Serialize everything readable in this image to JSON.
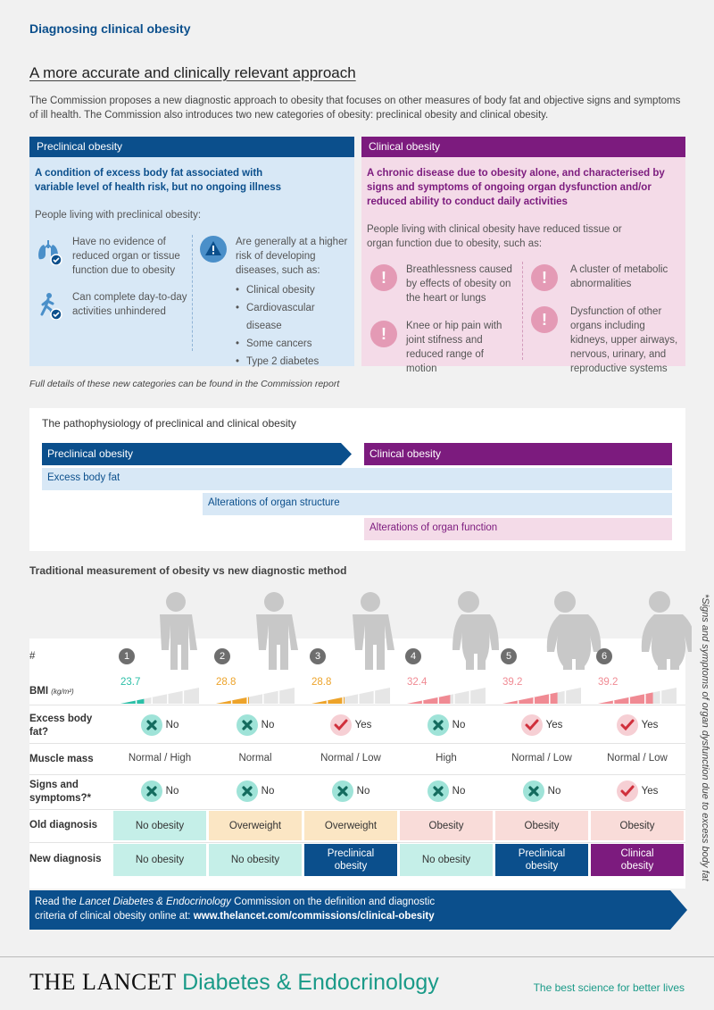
{
  "header": {
    "kicker": "Diagnosing clinical obesity",
    "headline": "A more accurate and clinically relevant approach",
    "intro": "The Commission proposes a new diagnostic approach to obesity that focuses on other measures of body fat and objective signs and symptoms of ill health. The Commission also introduces two new categories of obesity: preclinical obesity and clinical obesity."
  },
  "preclinical": {
    "title": "Preclinical obesity",
    "definition": "A condition of excess body fat associated with variable level of health risk, but no ongoing illness",
    "lead": "People living with preclinical obesity:",
    "left_items": [
      {
        "icon": "lungs-check-icon",
        "text": "Have no evidence of reduced organ or tissue function due to obesity"
      },
      {
        "icon": "walking-check-icon",
        "text": "Can complete day-to-day activities unhindered"
      }
    ],
    "risk_text": "Are generally at a higher risk of developing diseases, such as:",
    "risk_bullets": [
      "Clinical obesity",
      "Cardiovascular disease",
      "Some cancers",
      "Type 2 diabetes"
    ]
  },
  "clinical": {
    "title": "Clinical obesity",
    "definition": "A chronic disease due to obesity alone, and characterised by signs and symptoms of ongoing organ dysfunction and/or reduced ability to conduct daily activities",
    "lead": "People living with clinical obesity have reduced tissue or organ function due to obesity, such as:",
    "items": [
      "Breathlessness caused by effects of obesity on the heart or lungs",
      "Knee or hip pain with joint stifness and reduced range of motion",
      "A cluster of metabolic abnormalities",
      "Dysfunction of other organs including kidneys, upper airways, nervous, urinary, and reproductive systems"
    ],
    "warn_glyph": "!"
  },
  "footnote": "Full details of these new categories can be found in the Commission report",
  "patho": {
    "title": "The pathophysiology of preclinical and clinical obesity",
    "preclinical_label": "Preclinical obesity",
    "clinical_label": "Clinical obesity",
    "bars": [
      "Excess body fat",
      "Alterations of organ structure",
      "Alterations of organ function"
    ]
  },
  "measure": {
    "title": "Traditional measurement of obesity vs new diagnostic method",
    "row_labels": {
      "num": "#",
      "bmi": "BMI",
      "bmi_unit": "(kg/m²)",
      "fat": "Excess body fat?",
      "muscle": "Muscle mass",
      "signs": "Signs and symptoms?*",
      "old": "Old diagnosis",
      "new": "New diagnosis"
    },
    "columns": [
      {
        "num": "1",
        "bmi": "23.7",
        "bmi_fill": 0.3,
        "bmi_color": "#2bbfa7",
        "fat": "No",
        "muscle": "Normal / High",
        "signs": "No",
        "old": "No obesity",
        "new": "No obesity"
      },
      {
        "num": "2",
        "bmi": "28.8",
        "bmi_fill": 0.42,
        "bmi_color": "#eda32a",
        "fat": "No",
        "muscle": "Normal",
        "signs": "No",
        "old": "Overweight",
        "new": "No obesity"
      },
      {
        "num": "3",
        "bmi": "28.8",
        "bmi_fill": 0.42,
        "bmi_color": "#eda32a",
        "fat": "Yes",
        "muscle": "Normal / Low",
        "signs": "No",
        "old": "Overweight",
        "new": "Preclinical obesity"
      },
      {
        "num": "4",
        "bmi": "32.4",
        "bmi_fill": 0.55,
        "bmi_color": "#f08a93",
        "fat": "No",
        "muscle": "High",
        "signs": "No",
        "old": "Obesity",
        "new": "No obesity"
      },
      {
        "num": "5",
        "bmi": "39.2",
        "bmi_fill": 0.7,
        "bmi_color": "#f08a93",
        "fat": "Yes",
        "muscle": "Normal / Low",
        "signs": "No",
        "old": "Obesity",
        "new": "Preclinical obesity"
      },
      {
        "num": "6",
        "bmi": "39.2",
        "bmi_fill": 0.7,
        "bmi_color": "#f08a93",
        "fat": "Yes",
        "muscle": "Normal / Low",
        "signs": "Yes",
        "old": "Obesity",
        "new": "Clinical obesity"
      }
    ],
    "side_note": "*Signs and symptoms of organ dysfunction due to excess body fat"
  },
  "banner": {
    "text_pre": "Read the ",
    "journal": "Lancet Diabetes & Endocrinology",
    "text_mid": " Commission on the definition and diagnostic criteria of clinical obesity online at: ",
    "url": "www.thelancet.com/commissions/clinical-obesity"
  },
  "footer": {
    "brand": "THE LANCET",
    "brand_sub": "Diabetes & Endocrinology",
    "tagline": "The best science for better lives"
  },
  "colors": {
    "blue": "#0b4f8c",
    "purple": "#7c1b7e",
    "teal": "#9fe3d8",
    "orange": "#fbe6c4",
    "pink": "#f8d6d6",
    "light_blue": "#d8e8f6",
    "light_pink": "#f4dbe8"
  }
}
